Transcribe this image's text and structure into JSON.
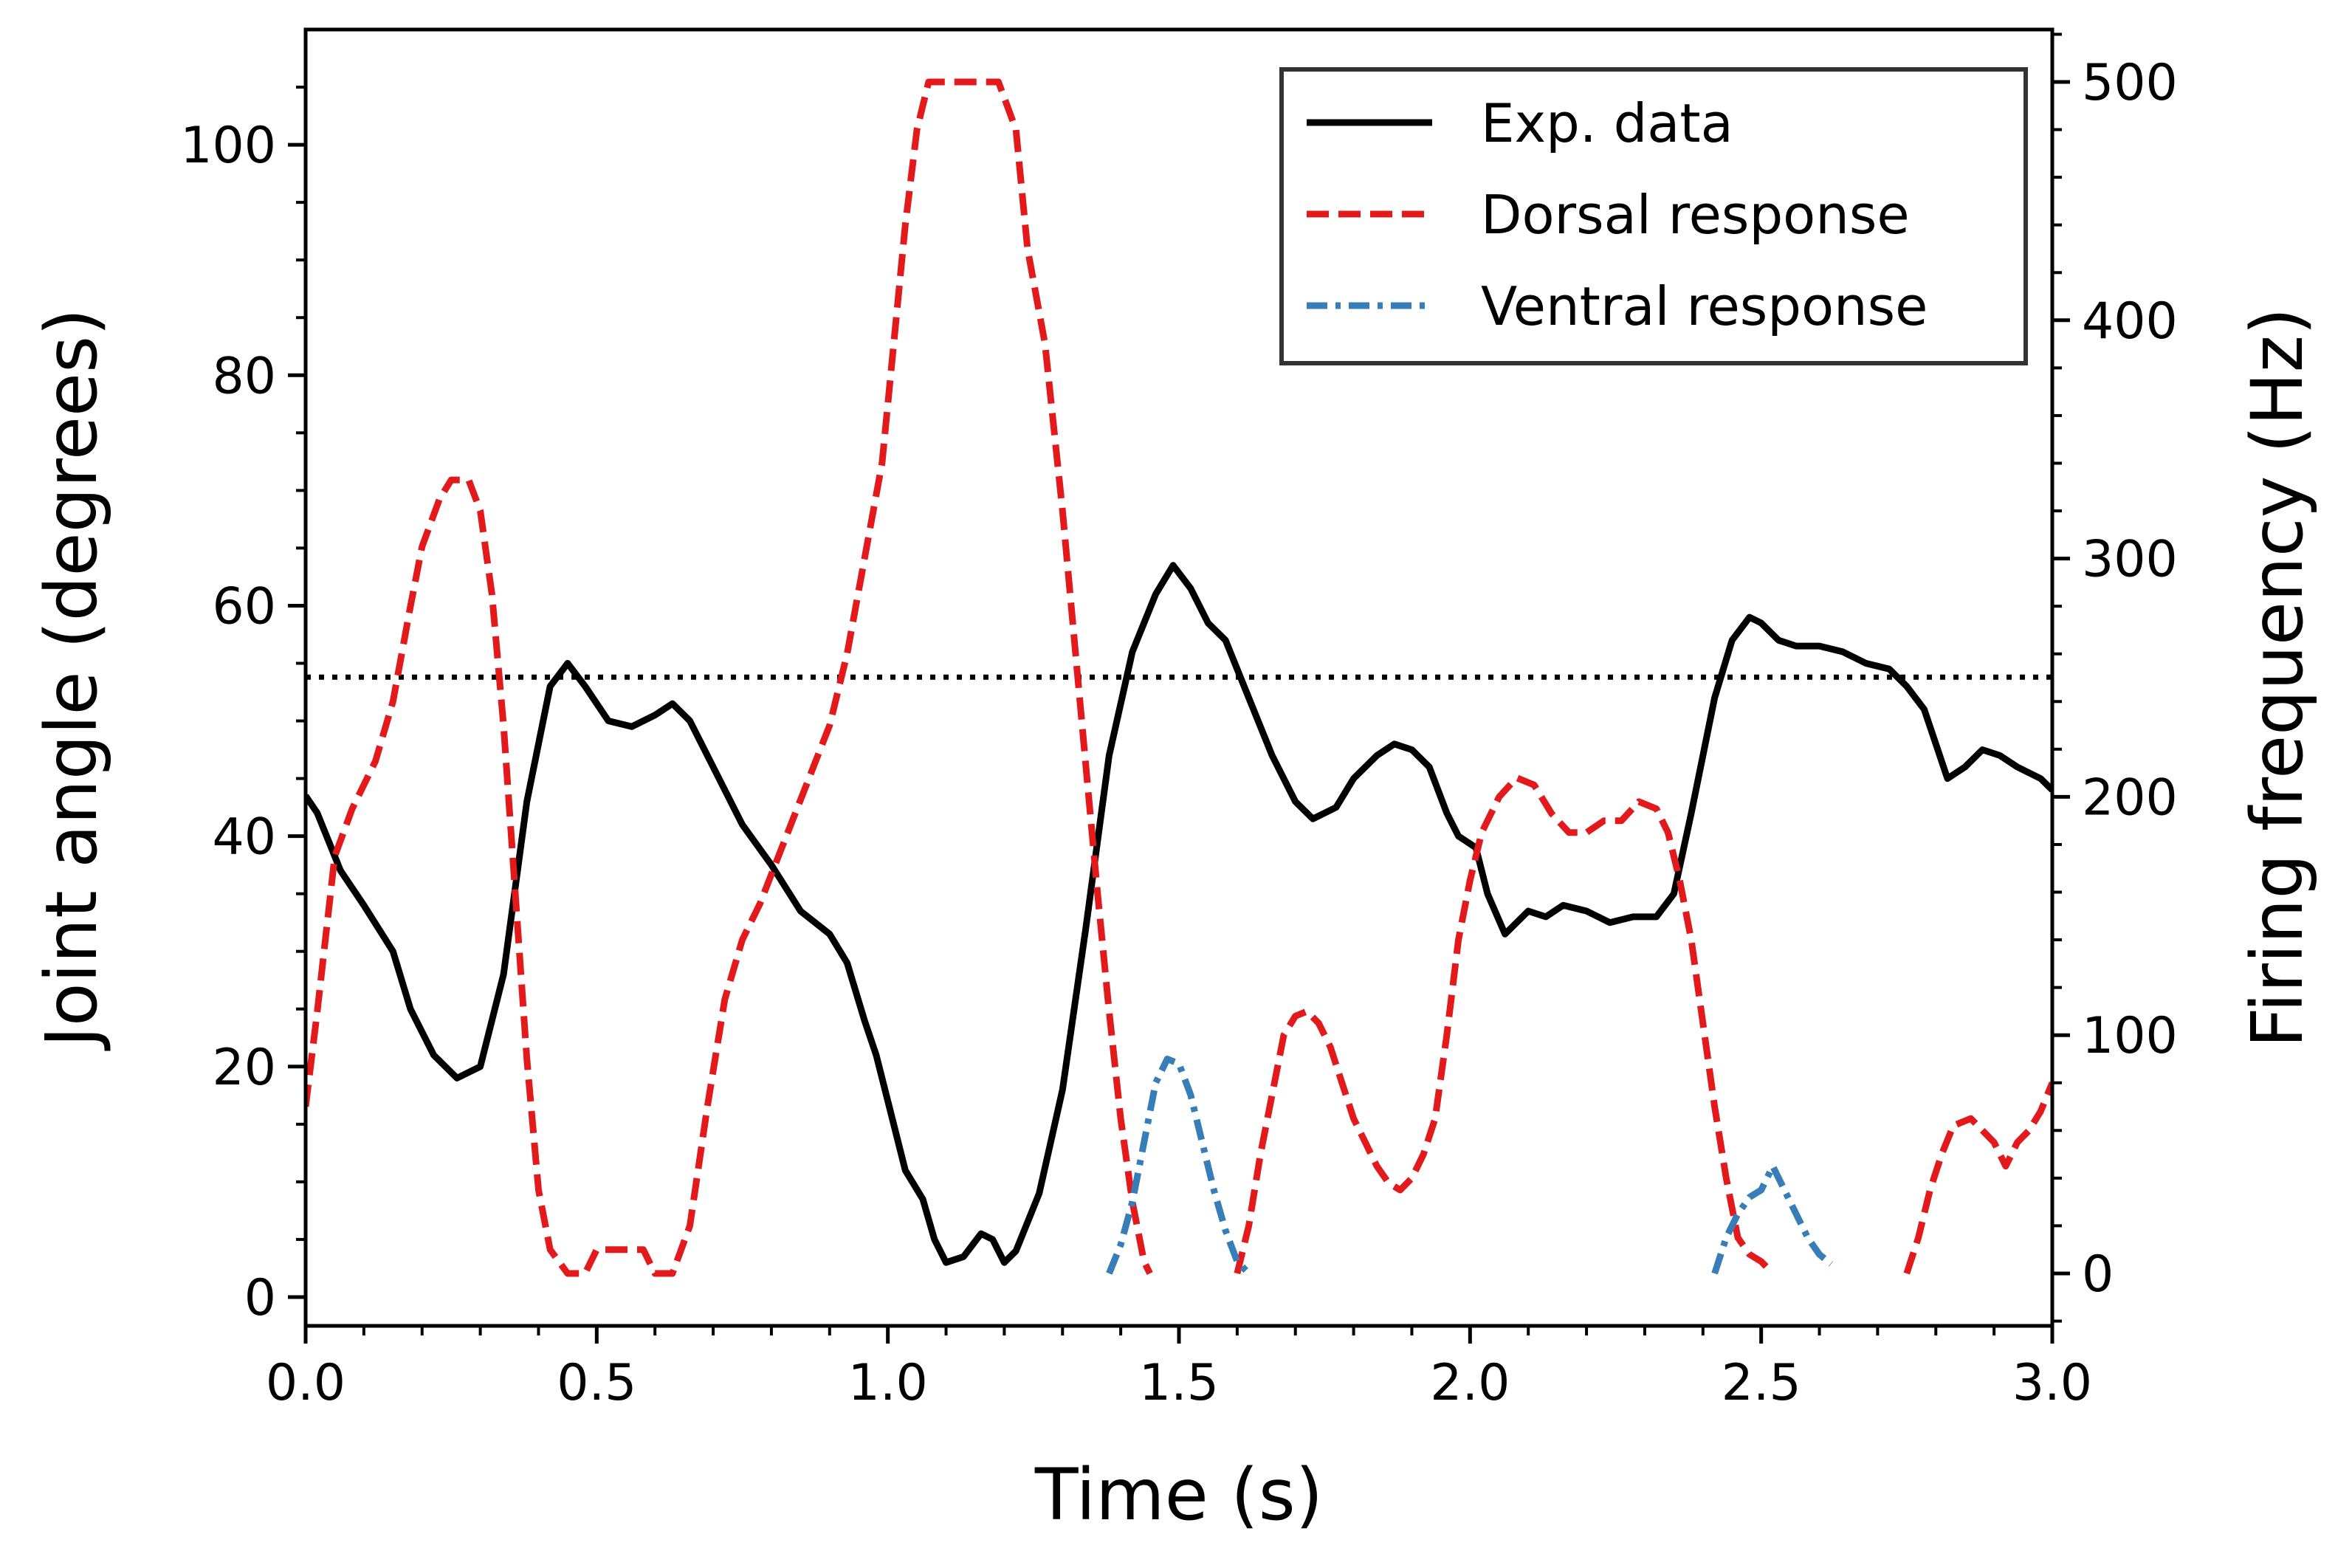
{
  "chart_data": {
    "type": "line",
    "xlabel": "Time (s)",
    "ylabel_left": "Joint angle (degrees)",
    "ylabel_right": "Firing frequency (Hz)",
    "xlim": [
      0,
      3.0
    ],
    "ylim_left": [
      -2.5,
      110
    ],
    "ylim_right": [
      -22,
      522
    ],
    "xticks": [
      "0.0",
      "0.5",
      "1.0",
      "1.5",
      "2.0",
      "2.5",
      "3.0"
    ],
    "xtick_values": [
      0,
      0.5,
      1.0,
      1.5,
      2.0,
      2.5,
      3.0
    ],
    "yticks_left": [
      "0",
      "20",
      "40",
      "60",
      "80",
      "100"
    ],
    "ytick_values_left": [
      0,
      20,
      40,
      60,
      80,
      100
    ],
    "yticks_right": [
      "0",
      "100",
      "200",
      "300",
      "400",
      "500"
    ],
    "ytick_values_right": [
      0,
      100,
      200,
      300,
      400,
      500
    ],
    "threshold_line": {
      "y_left": 53.8,
      "style": "dotted",
      "color": "#000000"
    },
    "legend_position": "top-right",
    "series": [
      {
        "name": "Exp. data",
        "axis": "left",
        "color": "#000000",
        "style": "solid",
        "points": [
          [
            0.0,
            43.5
          ],
          [
            0.02,
            42
          ],
          [
            0.06,
            37
          ],
          [
            0.1,
            34
          ],
          [
            0.15,
            30
          ],
          [
            0.18,
            25
          ],
          [
            0.22,
            21
          ],
          [
            0.26,
            19
          ],
          [
            0.3,
            20
          ],
          [
            0.34,
            28
          ],
          [
            0.38,
            43
          ],
          [
            0.42,
            53
          ],
          [
            0.45,
            55
          ],
          [
            0.48,
            53
          ],
          [
            0.52,
            50
          ],
          [
            0.56,
            49.5
          ],
          [
            0.6,
            50.5
          ],
          [
            0.63,
            51.5
          ],
          [
            0.66,
            50
          ],
          [
            0.7,
            46
          ],
          [
            0.75,
            41
          ],
          [
            0.8,
            37.5
          ],
          [
            0.85,
            33.5
          ],
          [
            0.9,
            31.5
          ],
          [
            0.93,
            29
          ],
          [
            0.96,
            24
          ],
          [
            0.98,
            21
          ],
          [
            1.0,
            17
          ],
          [
            1.03,
            11
          ],
          [
            1.06,
            8.5
          ],
          [
            1.08,
            5
          ],
          [
            1.1,
            3
          ],
          [
            1.13,
            3.5
          ],
          [
            1.16,
            5.5
          ],
          [
            1.18,
            5
          ],
          [
            1.2,
            3
          ],
          [
            1.22,
            4
          ],
          [
            1.26,
            9
          ],
          [
            1.3,
            18
          ],
          [
            1.34,
            32
          ],
          [
            1.38,
            47
          ],
          [
            1.42,
            56
          ],
          [
            1.46,
            61
          ],
          [
            1.49,
            63.5
          ],
          [
            1.52,
            61.5
          ],
          [
            1.55,
            58.5
          ],
          [
            1.58,
            57
          ],
          [
            1.62,
            52
          ],
          [
            1.66,
            47
          ],
          [
            1.7,
            43
          ],
          [
            1.73,
            41.5
          ],
          [
            1.77,
            42.5
          ],
          [
            1.8,
            45
          ],
          [
            1.84,
            47
          ],
          [
            1.87,
            48
          ],
          [
            1.9,
            47.5
          ],
          [
            1.93,
            46
          ],
          [
            1.96,
            42
          ],
          [
            1.98,
            40
          ],
          [
            2.01,
            39
          ],
          [
            2.03,
            35
          ],
          [
            2.06,
            31.5
          ],
          [
            2.1,
            33.5
          ],
          [
            2.13,
            33
          ],
          [
            2.16,
            34
          ],
          [
            2.2,
            33.5
          ],
          [
            2.24,
            32.5
          ],
          [
            2.28,
            33
          ],
          [
            2.32,
            33
          ],
          [
            2.35,
            35
          ],
          [
            2.38,
            42
          ],
          [
            2.42,
            52
          ],
          [
            2.45,
            57
          ],
          [
            2.48,
            59
          ],
          [
            2.5,
            58.5
          ],
          [
            2.53,
            57
          ],
          [
            2.56,
            56.5
          ],
          [
            2.6,
            56.5
          ],
          [
            2.64,
            56
          ],
          [
            2.68,
            55
          ],
          [
            2.72,
            54.5
          ],
          [
            2.75,
            53
          ],
          [
            2.78,
            51
          ],
          [
            2.8,
            48
          ],
          [
            2.82,
            45
          ],
          [
            2.85,
            46
          ],
          [
            2.88,
            47.5
          ],
          [
            2.91,
            47
          ],
          [
            2.94,
            46
          ],
          [
            2.98,
            45
          ],
          [
            3.0,
            44
          ]
        ]
      },
      {
        "name": "Dorsal response",
        "axis": "right",
        "color": "#e31a1c",
        "style": "dashed",
        "segments": [
          [
            [
              0.0,
              70
            ],
            [
              0.02,
              110
            ],
            [
              0.05,
              175
            ],
            [
              0.08,
              195
            ],
            [
              0.12,
              215
            ],
            [
              0.15,
              240
            ],
            [
              0.18,
              280
            ],
            [
              0.2,
              305
            ],
            [
              0.23,
              325
            ],
            [
              0.25,
              333
            ],
            [
              0.28,
              333
            ],
            [
              0.3,
              320
            ],
            [
              0.32,
              285
            ],
            [
              0.34,
              230
            ],
            [
              0.36,
              160
            ],
            [
              0.38,
              90
            ],
            [
              0.4,
              35
            ],
            [
              0.42,
              10
            ],
            [
              0.45,
              0
            ],
            [
              0.48,
              0
            ],
            [
              0.5,
              10
            ],
            [
              0.54,
              10
            ],
            [
              0.58,
              10
            ],
            [
              0.6,
              0
            ],
            [
              0.63,
              0
            ],
            [
              0.66,
              20
            ],
            [
              0.69,
              70
            ],
            [
              0.72,
              115
            ],
            [
              0.75,
              140
            ],
            [
              0.78,
              155
            ],
            [
              0.82,
              180
            ],
            [
              0.86,
              205
            ],
            [
              0.9,
              230
            ],
            [
              0.93,
              260
            ],
            [
              0.96,
              300
            ],
            [
              0.99,
              340
            ],
            [
              1.01,
              390
            ],
            [
              1.03,
              440
            ],
            [
              1.05,
              480
            ],
            [
              1.07,
              500
            ],
            [
              1.1,
              500
            ],
            [
              1.15,
              500
            ],
            [
              1.19,
              500
            ],
            [
              1.22,
              480
            ],
            [
              1.24,
              430
            ],
            [
              1.27,
              390
            ],
            [
              1.3,
              320
            ],
            [
              1.33,
              240
            ],
            [
              1.36,
              160
            ],
            [
              1.38,
              110
            ],
            [
              1.4,
              65
            ],
            [
              1.42,
              30
            ],
            [
              1.44,
              5
            ],
            [
              1.45,
              0
            ]
          ],
          [
            [
              1.6,
              0
            ],
            [
              1.62,
              20
            ],
            [
              1.64,
              50
            ],
            [
              1.66,
              75
            ],
            [
              1.68,
              100
            ],
            [
              1.7,
              108
            ],
            [
              1.72,
              110
            ],
            [
              1.74,
              105
            ],
            [
              1.76,
              95
            ],
            [
              1.78,
              80
            ],
            [
              1.8,
              65
            ],
            [
              1.82,
              55
            ],
            [
              1.84,
              45
            ],
            [
              1.86,
              38
            ],
            [
              1.88,
              35
            ],
            [
              1.9,
              40
            ],
            [
              1.92,
              50
            ],
            [
              1.94,
              65
            ],
            [
              1.96,
              100
            ],
            [
              1.98,
              140
            ],
            [
              2.0,
              165
            ],
            [
              2.02,
              185
            ],
            [
              2.05,
              200
            ],
            [
              2.08,
              208
            ],
            [
              2.11,
              205
            ],
            [
              2.14,
              193
            ],
            [
              2.17,
              185
            ],
            [
              2.2,
              185
            ],
            [
              2.23,
              190
            ],
            [
              2.26,
              190
            ],
            [
              2.29,
              198
            ],
            [
              2.32,
              195
            ],
            [
              2.34,
              185
            ],
            [
              2.36,
              165
            ],
            [
              2.38,
              140
            ],
            [
              2.4,
              105
            ],
            [
              2.42,
              70
            ],
            [
              2.44,
              40
            ],
            [
              2.46,
              15
            ],
            [
              2.48,
              8
            ],
            [
              2.5,
              5
            ],
            [
              2.52,
              0
            ]
          ],
          [
            [
              2.75,
              0
            ],
            [
              2.77,
              15
            ],
            [
              2.79,
              35
            ],
            [
              2.81,
              50
            ],
            [
              2.83,
              62
            ],
            [
              2.86,
              65
            ],
            [
              2.88,
              60
            ],
            [
              2.9,
              55
            ],
            [
              2.92,
              45
            ],
            [
              2.94,
              55
            ],
            [
              2.96,
              60
            ],
            [
              2.98,
              68
            ],
            [
              3.0,
              80
            ]
          ]
        ]
      },
      {
        "name": "Ventral response",
        "axis": "right",
        "color": "#377eb8",
        "style": "dashdot",
        "segments": [
          [
            [
              1.38,
              0
            ],
            [
              1.4,
              12
            ],
            [
              1.42,
              30
            ],
            [
              1.44,
              55
            ],
            [
              1.46,
              80
            ],
            [
              1.48,
              90
            ],
            [
              1.5,
              88
            ],
            [
              1.52,
              75
            ],
            [
              1.54,
              55
            ],
            [
              1.56,
              35
            ],
            [
              1.58,
              18
            ],
            [
              1.6,
              5
            ],
            [
              1.62,
              0
            ]
          ],
          [
            [
              2.42,
              0
            ],
            [
              2.44,
              15
            ],
            [
              2.46,
              25
            ],
            [
              2.48,
              32
            ],
            [
              2.5,
              35
            ],
            [
              2.52,
              45
            ],
            [
              2.54,
              35
            ],
            [
              2.56,
              25
            ],
            [
              2.58,
              15
            ],
            [
              2.6,
              8
            ],
            [
              2.62,
              4
            ]
          ]
        ]
      }
    ]
  }
}
